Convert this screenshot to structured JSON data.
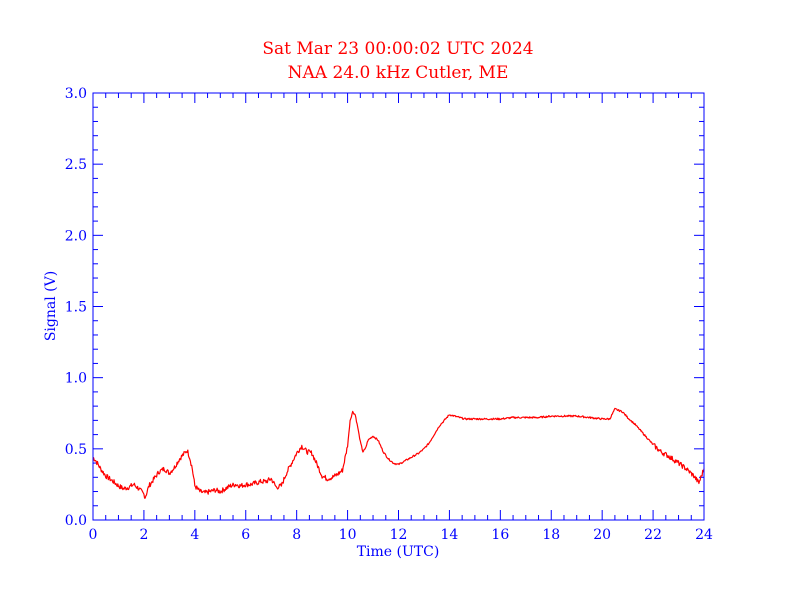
{
  "colors": {
    "title": "#ff0000",
    "axis": "#0000ff",
    "series": "#ff0000",
    "background": "#ffffff"
  },
  "chart_data": {
    "type": "line",
    "title": "Sat Mar 23 00:00:02 UTC 2024",
    "subtitle": "NAA 24.0 kHz Cutler, ME",
    "xlabel": "Time (UTC)",
    "ylabel": "Signal (V)",
    "xlim": [
      0,
      24
    ],
    "ylim": [
      0,
      3.0
    ],
    "xticks": [
      "0",
      "2",
      "4",
      "6",
      "8",
      "10",
      "12",
      "14",
      "16",
      "18",
      "20",
      "22",
      "24"
    ],
    "yticks": [
      "0.0",
      "0.5",
      "1.0",
      "1.5",
      "2.0",
      "2.5",
      "3.0"
    ],
    "grid": false,
    "series": [
      {
        "x": [
          0.0,
          0.1,
          0.3,
          0.5,
          0.8,
          1.0,
          1.2,
          1.4,
          1.6,
          1.8,
          2.0,
          2.05,
          2.2,
          2.4,
          2.6,
          2.8,
          3.0,
          3.2,
          3.4,
          3.6,
          3.7,
          3.8,
          3.9,
          4.0,
          4.2,
          4.4,
          4.6,
          4.8,
          5.0,
          5.2,
          5.4,
          5.6,
          5.8,
          6.0,
          6.2,
          6.4,
          6.6,
          6.8,
          7.0,
          7.2,
          7.4,
          7.6,
          7.8,
          8.0,
          8.2,
          8.4,
          8.6,
          8.8,
          9.0,
          9.2,
          9.4,
          9.6,
          9.8,
          10.0,
          10.1,
          10.2,
          10.3,
          10.4,
          10.5,
          10.6,
          10.7,
          10.8,
          11.0,
          11.2,
          11.4,
          11.6,
          11.8,
          12.0,
          12.2,
          12.4,
          12.6,
          12.8,
          13.0,
          13.2,
          13.4,
          13.6,
          13.8,
          14.0,
          14.2,
          14.4,
          14.6,
          15.0,
          15.5,
          16.0,
          16.5,
          17.0,
          17.5,
          18.0,
          18.5,
          19.0,
          19.5,
          20.0,
          20.3,
          20.5,
          20.8,
          21.0,
          21.3,
          21.6,
          22.0,
          22.3,
          22.6,
          23.0,
          23.3,
          23.6,
          23.8,
          24.0
        ],
        "values": [
          0.44,
          0.42,
          0.36,
          0.31,
          0.27,
          0.24,
          0.22,
          0.23,
          0.25,
          0.22,
          0.18,
          0.16,
          0.24,
          0.29,
          0.34,
          0.36,
          0.33,
          0.37,
          0.43,
          0.47,
          0.49,
          0.44,
          0.36,
          0.24,
          0.2,
          0.19,
          0.2,
          0.21,
          0.2,
          0.22,
          0.24,
          0.25,
          0.24,
          0.25,
          0.25,
          0.26,
          0.27,
          0.27,
          0.29,
          0.23,
          0.24,
          0.33,
          0.4,
          0.47,
          0.52,
          0.48,
          0.47,
          0.39,
          0.31,
          0.29,
          0.3,
          0.32,
          0.35,
          0.52,
          0.7,
          0.76,
          0.74,
          0.65,
          0.55,
          0.48,
          0.5,
          0.56,
          0.59,
          0.56,
          0.48,
          0.43,
          0.4,
          0.39,
          0.41,
          0.43,
          0.45,
          0.47,
          0.5,
          0.54,
          0.6,
          0.66,
          0.7,
          0.74,
          0.73,
          0.72,
          0.71,
          0.71,
          0.71,
          0.71,
          0.72,
          0.72,
          0.72,
          0.73,
          0.73,
          0.73,
          0.72,
          0.71,
          0.71,
          0.78,
          0.76,
          0.72,
          0.67,
          0.61,
          0.53,
          0.48,
          0.45,
          0.4,
          0.36,
          0.31,
          0.26,
          0.36
        ]
      }
    ]
  }
}
